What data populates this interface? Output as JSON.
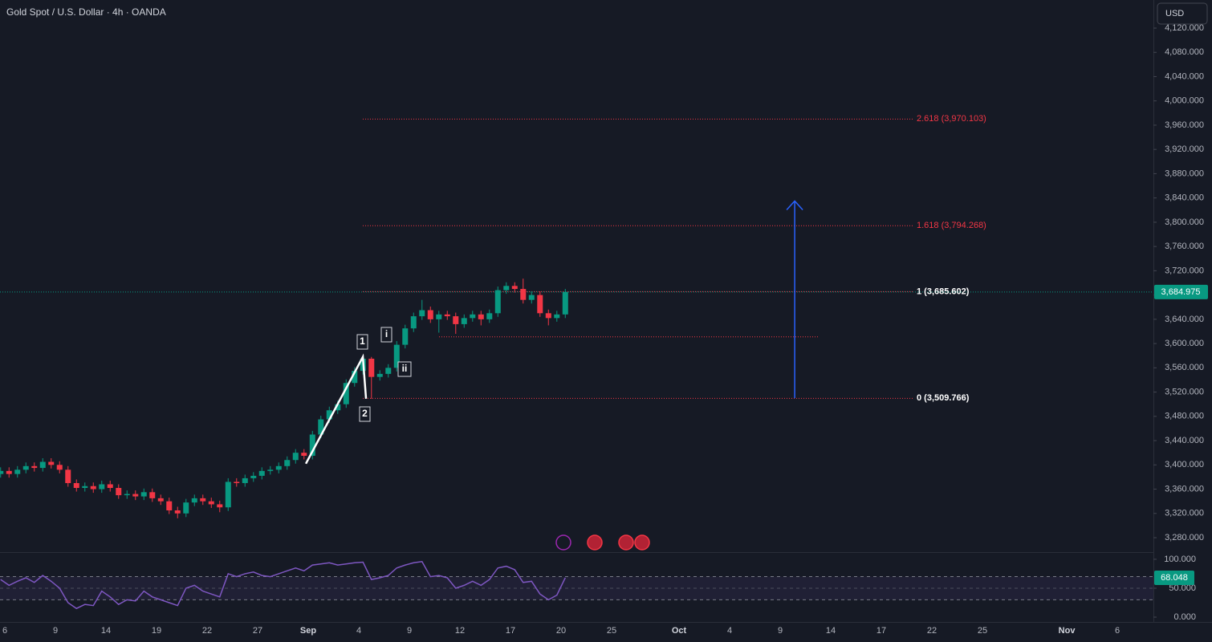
{
  "chart_data": [
    {
      "type": "candlestick",
      "title": "Gold Spot / U.S. Dollar · 4h · OANDA",
      "currency": "USD",
      "up_color": "#089981",
      "down_color": "#f23645",
      "x": [
        -0.25,
        0.25,
        0.75,
        1.25,
        1.75,
        2.25,
        2.75,
        3.25,
        3.75,
        4.25,
        4.75,
        5.25,
        5.75,
        6.25,
        6.75,
        7.25,
        7.75,
        8.25,
        8.75,
        9.25,
        9.75,
        10.25,
        10.75,
        11.25,
        11.75,
        12.25,
        12.75,
        13.25,
        13.75,
        14.25,
        14.75,
        15.25,
        15.75,
        16.25,
        16.75,
        17.25,
        17.75,
        18.25,
        18.75,
        19.25,
        19.75,
        20.25,
        20.75,
        21.25,
        21.75,
        22.25,
        22.75,
        23.25,
        23.75,
        24.25,
        24.75,
        25.25,
        25.75,
        26.25,
        26.75,
        27.25,
        27.75,
        28.25,
        28.75,
        29.25,
        29.75,
        30.25,
        30.75,
        31.25,
        31.75,
        32.25,
        32.75,
        33.25
      ],
      "open": [
        3385,
        3390,
        3385,
        3392,
        3398,
        3395,
        3405,
        3400,
        3392,
        3370,
        3362,
        3365,
        3360,
        3368,
        3362,
        3350,
        3352,
        3348,
        3355,
        3345,
        3340,
        3325,
        3320,
        3338,
        3345,
        3340,
        3335,
        3330,
        3372,
        3370,
        3378,
        3382,
        3390,
        3392,
        3398,
        3408,
        3420,
        3415,
        3450,
        3475,
        3490,
        3500,
        3535,
        3555,
        3575,
        3545,
        3550,
        3560,
        3598,
        3625,
        3645,
        3655,
        3640,
        3648,
        3645,
        3632,
        3642,
        3648,
        3640,
        3650,
        3688,
        3695,
        3690,
        3672,
        3680,
        3650,
        3642,
        3648
      ],
      "high": [
        3396,
        3396,
        3398,
        3404,
        3404,
        3411,
        3411,
        3406,
        3398,
        3376,
        3371,
        3371,
        3374,
        3374,
        3368,
        3358,
        3358,
        3361,
        3361,
        3351,
        3346,
        3331,
        3344,
        3351,
        3351,
        3346,
        3341,
        3378,
        3378,
        3384,
        3388,
        3396,
        3398,
        3404,
        3414,
        3426,
        3426,
        3456,
        3481,
        3496,
        3506,
        3541,
        3561,
        3581,
        3578,
        3556,
        3566,
        3604,
        3631,
        3651,
        3672,
        3661,
        3654,
        3654,
        3651,
        3648,
        3654,
        3654,
        3656,
        3694,
        3701,
        3701,
        3707,
        3686,
        3686,
        3656,
        3654,
        3690
      ],
      "low": [
        3379,
        3379,
        3379,
        3386,
        3389,
        3389,
        3394,
        3386,
        3364,
        3356,
        3356,
        3354,
        3354,
        3356,
        3344,
        3344,
        3342,
        3342,
        3339,
        3334,
        3319,
        3312,
        3314,
        3332,
        3334,
        3329,
        3322,
        3324,
        3364,
        3364,
        3372,
        3376,
        3384,
        3386,
        3392,
        3402,
        3409,
        3409,
        3444,
        3469,
        3484,
        3494,
        3529,
        3549,
        3509,
        3539,
        3544,
        3554,
        3592,
        3619,
        3639,
        3634,
        3618,
        3639,
        3616,
        3626,
        3636,
        3630,
        3634,
        3644,
        3682,
        3684,
        3666,
        3666,
        3644,
        3630,
        3636,
        3642
      ],
      "close": [
        3390,
        3385,
        3392,
        3398,
        3395,
        3405,
        3400,
        3392,
        3370,
        3362,
        3365,
        3360,
        3368,
        3362,
        3350,
        3352,
        3348,
        3355,
        3345,
        3340,
        3325,
        3320,
        3338,
        3345,
        3340,
        3335,
        3330,
        3372,
        3370,
        3378,
        3382,
        3390,
        3392,
        3398,
        3408,
        3420,
        3415,
        3450,
        3475,
        3490,
        3500,
        3535,
        3555,
        3575,
        3545,
        3550,
        3560,
        3598,
        3625,
        3645,
        3655,
        3640,
        3648,
        3645,
        3632,
        3642,
        3648,
        3640,
        3650,
        3688,
        3695,
        3690,
        3672,
        3680,
        3650,
        3642,
        3648,
        3684.975
      ],
      "xlim": [
        -0.286,
        68.14
      ],
      "xticks": [
        {
          "value": 0,
          "label": "6"
        },
        {
          "value": 3,
          "label": "9"
        },
        {
          "value": 6,
          "label": "14"
        },
        {
          "value": 9,
          "label": "19"
        },
        {
          "value": 12,
          "label": "22"
        },
        {
          "value": 15,
          "label": "27"
        },
        {
          "value": 18,
          "label": "Sep"
        },
        {
          "value": 21,
          "label": "4"
        },
        {
          "value": 24,
          "label": "9"
        },
        {
          "value": 27,
          "label": "12"
        },
        {
          "value": 30,
          "label": "17"
        },
        {
          "value": 33,
          "label": "20"
        },
        {
          "value": 36,
          "label": "25"
        },
        {
          "value": 40,
          "label": "Oct"
        },
        {
          "value": 43,
          "label": "4"
        },
        {
          "value": 46,
          "label": "9"
        },
        {
          "value": 49,
          "label": "14"
        },
        {
          "value": 52,
          "label": "17"
        },
        {
          "value": 55,
          "label": "22"
        },
        {
          "value": 58,
          "label": "25"
        },
        {
          "value": 63,
          "label": "Nov"
        },
        {
          "value": 66,
          "label": "6"
        }
      ],
      "ylim": [
        3256.2,
        4166.3
      ],
      "yticks": [
        {
          "value": 3280,
          "label": "3,280.000"
        },
        {
          "value": 3320,
          "label": "3,320.000"
        },
        {
          "value": 3360,
          "label": "3,360.000"
        },
        {
          "value": 3400,
          "label": "3,400.000"
        },
        {
          "value": 3440,
          "label": "3,440.000"
        },
        {
          "value": 3480,
          "label": "3,480.000"
        },
        {
          "value": 3520,
          "label": "3,520.000"
        },
        {
          "value": 3560,
          "label": "3,560.000"
        },
        {
          "value": 3600,
          "label": "3,600.000"
        },
        {
          "value": 3640,
          "label": "3,640.000"
        },
        {
          "value": 3680,
          "label": "3,680.000"
        },
        {
          "value": 3720,
          "label": "3,720.000"
        },
        {
          "value": 3760,
          "label": "3,760.000"
        },
        {
          "value": 3800,
          "label": "3,800.000"
        },
        {
          "value": 3840,
          "label": "3,840.000"
        },
        {
          "value": 3880,
          "label": "3,880.000"
        },
        {
          "value": 3920,
          "label": "3,920.000"
        },
        {
          "value": 3960,
          "label": "3,960.000"
        },
        {
          "value": 4000,
          "label": "4,000.000"
        },
        {
          "value": 4040,
          "label": "4,040.000"
        },
        {
          "value": 4080,
          "label": "4,080.000"
        },
        {
          "value": 4120,
          "label": "4,120.000"
        }
      ],
      "last_price": {
        "value": 3684.975,
        "label": "3,684.975"
      },
      "levels": [
        {
          "value": 3970.103,
          "label": "2.618 (3,970.103)",
          "color": "#f23645"
        },
        {
          "value": 3794.268,
          "label": "1.618 (3,794.268)",
          "color": "#f23645"
        },
        {
          "value": 3685.602,
          "label": "1 (3,685.602)",
          "color": "#ffffff"
        },
        {
          "value": 3509.766,
          "label": "0 (3,509.766)",
          "color": "#ffffff"
        }
      ],
      "support_line": 3611,
      "arrow": {
        "x": 46.86,
        "values": [
          3510,
          3835
        ],
        "color": "#2962ff"
      },
      "wave": {
        "x": [
          17.86,
          21.24,
          21.43
        ],
        "values": [
          3402,
          3578,
          3509
        ]
      },
      "wave_labels": [
        "1",
        "2",
        "i",
        "ii"
      ]
    },
    {
      "type": "line",
      "color": "#7e57c2",
      "x": [
        -0.25,
        0.25,
        0.75,
        1.25,
        1.75,
        2.25,
        2.75,
        3.25,
        3.75,
        4.25,
        4.75,
        5.25,
        5.75,
        6.25,
        6.75,
        7.25,
        7.75,
        8.25,
        8.75,
        9.25,
        9.75,
        10.25,
        10.75,
        11.25,
        11.75,
        12.25,
        12.75,
        13.25,
        13.75,
        14.25,
        14.75,
        15.25,
        15.75,
        16.25,
        16.75,
        17.25,
        17.75,
        18.25,
        18.75,
        19.25,
        19.75,
        20.25,
        20.75,
        21.25,
        21.75,
        22.25,
        22.75,
        23.25,
        23.75,
        24.25,
        24.75,
        25.25,
        25.75,
        26.25,
        26.75,
        27.25,
        27.75,
        28.25,
        28.75,
        29.25,
        29.75,
        30.25,
        30.75,
        31.25,
        31.75,
        32.25,
        32.75,
        33.25
      ],
      "values": [
        65,
        55,
        62,
        68,
        60,
        72,
        62,
        50,
        25,
        15,
        22,
        20,
        45,
        35,
        22,
        30,
        28,
        45,
        35,
        30,
        25,
        20,
        50,
        55,
        45,
        40,
        35,
        75,
        70,
        75,
        78,
        72,
        70,
        75,
        80,
        85,
        80,
        90,
        92,
        94,
        90,
        92,
        94,
        95,
        65,
        68,
        72,
        85,
        90,
        94,
        96,
        70,
        72,
        68,
        50,
        55,
        62,
        55,
        65,
        85,
        88,
        82,
        60,
        62,
        40,
        30,
        38,
        68.048
      ],
      "xlim": [
        -0.286,
        68.14
      ],
      "ylim": [
        -8.3,
        111
      ],
      "yticks": [
        {
          "value": 0,
          "label": "0.000"
        },
        {
          "value": 50,
          "label": "50.000"
        },
        {
          "value": 100,
          "label": "100.000"
        }
      ],
      "bands": [
        30,
        70
      ],
      "last_value": {
        "value": 68.048,
        "label": "68.048"
      }
    }
  ]
}
